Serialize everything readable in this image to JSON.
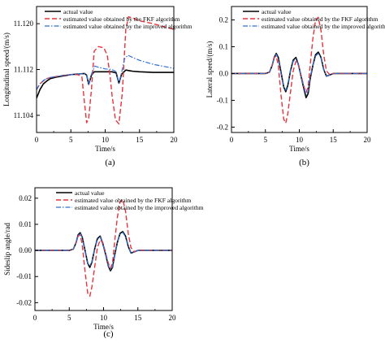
{
  "colors": {
    "actual": "#000000",
    "fkf": "#e8323c",
    "improved": "#2f6fd6"
  },
  "chart_data": [
    {
      "type": "line",
      "panel_label": "(a)",
      "xlabel": "Time/s",
      "ylabel": "Longitudinal speed/(m/s)",
      "xlim": [
        0,
        20
      ],
      "ylim": [
        11.101,
        11.123
      ],
      "x_ticks": [
        0,
        5,
        10,
        15,
        20
      ],
      "y_ticks": [
        11.104,
        11.112,
        11.12
      ],
      "y_tick_labels": [
        "11.104",
        "11.112",
        "11.120"
      ],
      "legend": [
        "actual value",
        "estimated value obtained by the FKF algorithm",
        "estimated value obtained by the improved algorithm"
      ],
      "series": [
        {
          "name": "actual value",
          "style": "solid",
          "x": [
            0,
            0.5,
            1,
            1.5,
            2,
            3,
            4,
            5,
            6,
            7,
            7.3,
            7.6,
            8,
            8.4,
            9,
            9.5,
            10,
            11,
            11.6,
            12,
            12.4,
            13,
            13.5,
            14,
            15,
            17,
            20
          ],
          "values": [
            11.107,
            11.1085,
            11.1095,
            11.11,
            11.1104,
            11.1107,
            11.1109,
            11.1111,
            11.1112,
            11.1113,
            11.111,
            11.1094,
            11.111,
            11.1116,
            11.1116,
            11.1116,
            11.1116,
            11.1116,
            11.1114,
            11.1096,
            11.1112,
            11.1119,
            11.1118,
            11.1117,
            11.1116,
            11.1115,
            11.1115
          ]
        },
        {
          "name": "estimated value obtained by the FKF algorithm",
          "style": "dash",
          "x": [
            0,
            0.5,
            1,
            1.5,
            2,
            3,
            4,
            5,
            6,
            6.6,
            7,
            7.3,
            7.6,
            8,
            8.4,
            9,
            9.8,
            10.3,
            10.7,
            11,
            11.5,
            12,
            12.5,
            13,
            13.4,
            14,
            15,
            17,
            20
          ],
          "values": [
            11.1085,
            11.1095,
            11.11,
            11.1104,
            11.1106,
            11.1108,
            11.111,
            11.1111,
            11.1111,
            11.1108,
            11.106,
            11.1027,
            11.1035,
            11.1085,
            11.1152,
            11.116,
            11.1158,
            11.1145,
            11.111,
            11.1075,
            11.1032,
            11.1025,
            11.108,
            11.119,
            11.1212,
            11.121,
            11.1205,
            11.12,
            11.119
          ]
        },
        {
          "name": "estimated value obtained by the improved algorithm",
          "style": "dashdot",
          "x": [
            0,
            0.5,
            1,
            1.5,
            2,
            3,
            4,
            5,
            6,
            7,
            7.3,
            7.6,
            8,
            8.5,
            9,
            10,
            11,
            11.6,
            12,
            12.4,
            12.8,
            13.3,
            14,
            15,
            17,
            20
          ],
          "values": [
            11.1085,
            11.1095,
            11.1101,
            11.1104,
            11.1106,
            11.1108,
            11.111,
            11.1111,
            11.1112,
            11.1113,
            11.111,
            11.1094,
            11.1112,
            11.1126,
            11.1124,
            11.1121,
            11.112,
            11.1116,
            11.1096,
            11.1115,
            11.1138,
            11.1145,
            11.1141,
            11.1136,
            11.1129,
            11.1122
          ]
        }
      ]
    },
    {
      "type": "line",
      "panel_label": "(b)",
      "xlabel": "Time/s",
      "ylabel": "Lateral speed/(m/s)",
      "xlim": [
        0,
        20
      ],
      "ylim": [
        -0.22,
        0.25
      ],
      "x_ticks": [
        0,
        5,
        10,
        15,
        20
      ],
      "y_ticks": [
        -0.2,
        -0.1,
        0,
        0.1,
        0.2
      ],
      "y_tick_labels": [
        "-0.2",
        "-0.1",
        "0.0",
        "0.1",
        "0.2"
      ],
      "legend": [
        "actual value",
        "estimated value obtained by the FKF algorithm",
        "estimated value obtained by the improved algorithm"
      ],
      "series": [
        {
          "name": "actual value",
          "style": "solid",
          "x": [
            0,
            5,
            5.6,
            6,
            6.3,
            6.6,
            6.9,
            7.3,
            7.7,
            8,
            8.3,
            8.7,
            9.1,
            9.5,
            9.9,
            10.3,
            10.7,
            11,
            11.3,
            11.6,
            12,
            12.4,
            12.8,
            13.2,
            13.6,
            14,
            14.5,
            15,
            20
          ],
          "values": [
            0,
            0,
            0.005,
            0.03,
            0.06,
            0.075,
            0.06,
            0.005,
            -0.05,
            -0.068,
            -0.045,
            0.01,
            0.05,
            0.06,
            0.03,
            -0.015,
            -0.06,
            -0.09,
            -0.075,
            -0.02,
            0.03,
            0.07,
            0.08,
            0.06,
            0.015,
            -0.01,
            -0.005,
            0,
            0
          ]
        },
        {
          "name": "estimated value obtained by the FKF algorithm",
          "style": "dash",
          "x": [
            0,
            5,
            5.6,
            6,
            6.3,
            6.6,
            6.9,
            7.3,
            7.7,
            8,
            8.3,
            8.7,
            9.1,
            9.5,
            9.9,
            10.3,
            10.7,
            11,
            11.3,
            11.6,
            12,
            12.4,
            12.8,
            13.2,
            13.6,
            14,
            14.5,
            15,
            20
          ],
          "values": [
            0,
            0,
            0.005,
            0.03,
            0.06,
            0.065,
            0.03,
            -0.08,
            -0.17,
            -0.185,
            -0.15,
            -0.07,
            0.01,
            0.045,
            0.03,
            -0.01,
            -0.05,
            -0.07,
            -0.05,
            0.03,
            0.13,
            0.2,
            0.21,
            0.16,
            0.07,
            0.01,
            -0.005,
            0,
            0
          ]
        },
        {
          "name": "estimated value obtained by the improved algorithm",
          "style": "dashdot",
          "x": [
            0,
            5,
            5.6,
            6,
            6.3,
            6.6,
            6.9,
            7.3,
            7.7,
            8,
            8.3,
            8.7,
            9.1,
            9.5,
            9.9,
            10.3,
            10.7,
            11,
            11.3,
            11.6,
            12,
            12.4,
            12.8,
            13.2,
            13.6,
            14,
            14.5,
            15,
            20
          ],
          "values": [
            0,
            0,
            0.005,
            0.03,
            0.06,
            0.072,
            0.055,
            0.0,
            -0.05,
            -0.062,
            -0.04,
            0.01,
            0.045,
            0.055,
            0.03,
            -0.015,
            -0.055,
            -0.08,
            -0.065,
            -0.015,
            0.03,
            0.065,
            0.075,
            0.06,
            0.015,
            -0.01,
            -0.005,
            0,
            0
          ]
        }
      ]
    },
    {
      "type": "line",
      "panel_label": "(c)",
      "xlabel": "Time/s",
      "ylabel": "Sideslip angle/rad",
      "xlim": [
        0,
        20
      ],
      "ylim": [
        -0.023,
        0.024
      ],
      "x_ticks": [
        0,
        5,
        10,
        15,
        20
      ],
      "y_ticks": [
        -0.02,
        -0.01,
        0,
        0.01,
        0.02
      ],
      "y_tick_labels": [
        "-0.02",
        "-0.01",
        "0.00",
        "0.01",
        "0.02"
      ],
      "legend": [
        "actual value",
        "estimated value obtained by the FKF algorithm",
        "estimated value obtained by the improved algorithm"
      ],
      "series": [
        {
          "name": "actual value",
          "style": "solid",
          "x": [
            0,
            5,
            5.6,
            6,
            6.3,
            6.6,
            6.9,
            7.3,
            7.7,
            8,
            8.3,
            8.7,
            9.1,
            9.5,
            9.9,
            10.3,
            10.7,
            11,
            11.3,
            11.6,
            12,
            12.4,
            12.8,
            13.2,
            13.6,
            14,
            14.5,
            15,
            20
          ],
          "values": [
            0,
            0,
            0.0005,
            0.003,
            0.006,
            0.0068,
            0.005,
            0.0,
            -0.005,
            -0.0065,
            -0.0045,
            0.0005,
            0.0045,
            0.0055,
            0.0025,
            -0.0015,
            -0.006,
            -0.0078,
            -0.0065,
            -0.002,
            0.003,
            0.0065,
            0.0072,
            0.0055,
            0.0015,
            -0.001,
            -0.0005,
            0,
            0
          ]
        },
        {
          "name": "estimated value obtained by the FKF algorithm",
          "style": "dash",
          "x": [
            0,
            5,
            5.6,
            6,
            6.3,
            6.6,
            6.9,
            7.3,
            7.7,
            8,
            8.3,
            8.7,
            9.1,
            9.5,
            9.9,
            10.3,
            10.7,
            11,
            11.3,
            11.6,
            12,
            12.4,
            12.8,
            13.2,
            13.6,
            14,
            14.5,
            15,
            20
          ],
          "values": [
            0,
            0,
            0.0005,
            0.003,
            0.0055,
            0.006,
            0.002,
            -0.008,
            -0.0165,
            -0.0175,
            -0.014,
            -0.0065,
            0.001,
            0.004,
            0.003,
            -0.001,
            -0.005,
            -0.0068,
            -0.005,
            0.003,
            0.0125,
            0.0185,
            0.0195,
            0.015,
            0.0065,
            0.001,
            -0.0005,
            0,
            0
          ]
        },
        {
          "name": "estimated value obtained by the improved algorithm",
          "style": "dashdot",
          "x": [
            0,
            5,
            5.6,
            6,
            6.3,
            6.6,
            6.9,
            7.3,
            7.7,
            8,
            8.3,
            8.7,
            9.1,
            9.5,
            9.9,
            10.3,
            10.7,
            11,
            11.3,
            11.6,
            12,
            12.4,
            12.8,
            13.2,
            13.6,
            14,
            14.5,
            15,
            20
          ],
          "values": [
            0,
            0,
            0.0005,
            0.003,
            0.0058,
            0.0065,
            0.0048,
            0.0,
            -0.0048,
            -0.006,
            -0.0042,
            0.0005,
            0.0042,
            0.0052,
            0.0025,
            -0.0015,
            -0.0058,
            -0.0075,
            -0.0062,
            -0.0018,
            0.003,
            0.0062,
            0.0069,
            0.0052,
            0.0015,
            -0.001,
            -0.0005,
            0,
            0
          ]
        }
      ]
    }
  ]
}
